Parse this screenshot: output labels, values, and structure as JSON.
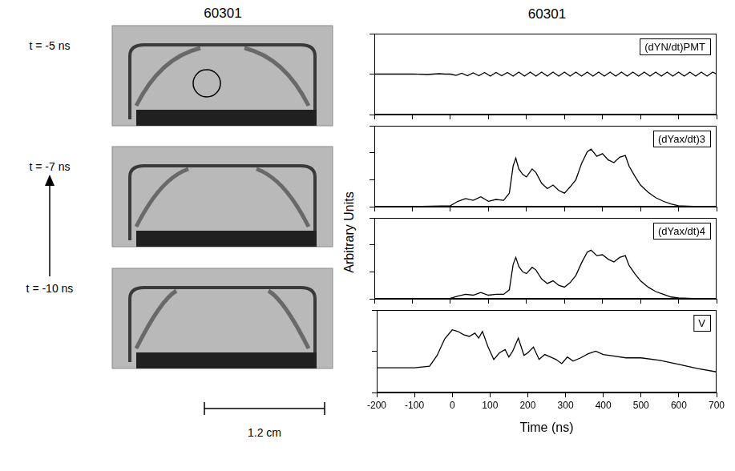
{
  "figure": {
    "title": "60301",
    "ylabel": "Arbitrary Units"
  },
  "images": {
    "title": "60301",
    "frames": [
      "t = -5 ns",
      "t = -7 ns",
      "t = -10 ns"
    ],
    "scale_bar": "1.2 cm"
  },
  "chart_data": [
    {
      "type": "line",
      "legend": "upper right",
      "grid": false,
      "tick_labels": false,
      "xlim": [
        -200,
        700
      ],
      "xticks": [
        -200,
        -100,
        0,
        100,
        200,
        300,
        400,
        500,
        600,
        700
      ],
      "ylim": [
        0,
        10
      ],
      "yticks": [
        0,
        5,
        10
      ],
      "x": [
        -200,
        -150,
        -100,
        -60,
        -30,
        -15,
        0,
        15,
        30,
        45,
        60,
        75,
        90,
        105,
        120,
        135,
        150,
        165,
        180,
        195,
        210,
        225,
        240,
        255,
        270,
        285,
        300,
        315,
        330,
        345,
        360,
        375,
        390,
        405,
        420,
        435,
        450,
        465,
        480,
        495,
        510,
        525,
        540,
        555,
        570,
        585,
        600,
        615,
        630,
        645,
        660,
        675,
        690,
        700
      ],
      "series": [
        {
          "name": "(dYN/dt)PMT",
          "color": "#000000",
          "values": [
            5.0,
            5.0,
            5.02,
            4.95,
            5.05,
            5.0,
            5.0,
            4.85,
            5.1,
            4.8,
            5.15,
            4.8,
            5.2,
            4.75,
            5.2,
            4.8,
            5.2,
            4.75,
            5.25,
            4.75,
            5.25,
            4.75,
            5.25,
            4.75,
            5.25,
            4.75,
            5.25,
            4.75,
            5.25,
            4.75,
            5.25,
            4.75,
            5.25,
            4.75,
            5.25,
            4.75,
            5.25,
            4.75,
            5.25,
            4.75,
            5.25,
            4.75,
            5.25,
            4.75,
            5.25,
            4.75,
            5.25,
            4.75,
            5.25,
            4.75,
            5.25,
            4.75,
            5.25,
            5.0
          ]
        }
      ]
    },
    {
      "type": "line",
      "legend": "upper right",
      "grid": false,
      "tick_labels": false,
      "xlim": [
        -200,
        700
      ],
      "xticks": [
        -200,
        -100,
        0,
        100,
        200,
        300,
        400,
        500,
        600,
        700
      ],
      "ylim": [
        0,
        9
      ],
      "yticks": [
        0,
        3,
        6,
        9
      ],
      "x": [
        -200,
        -100,
        0,
        20,
        40,
        60,
        80,
        100,
        120,
        140,
        155,
        165,
        172,
        180,
        190,
        200,
        215,
        225,
        240,
        255,
        270,
        285,
        300,
        315,
        330,
        345,
        360,
        370,
        385,
        400,
        415,
        430,
        445,
        460,
        470,
        485,
        500,
        520,
        540,
        560,
        580,
        600,
        650,
        700
      ],
      "series": [
        {
          "name": "(dYax/dt)3",
          "color": "#000000",
          "values": [
            0,
            0,
            0.1,
            0.6,
            0.9,
            0.7,
            1.1,
            0.6,
            0.8,
            0.7,
            1.5,
            4.5,
            5.4,
            4.2,
            3.6,
            3.3,
            4.2,
            3.8,
            2.6,
            2.0,
            2.4,
            1.8,
            1.5,
            2.2,
            3.0,
            4.8,
            6.1,
            6.4,
            5.6,
            5.9,
            5.2,
            4.9,
            5.5,
            5.7,
            4.5,
            3.4,
            2.4,
            1.6,
            1.0,
            0.6,
            0.3,
            0.1,
            0,
            0
          ]
        }
      ]
    },
    {
      "type": "line",
      "legend": "upper right",
      "grid": false,
      "tick_labels": false,
      "xlim": [
        -200,
        700
      ],
      "xticks": [
        -200,
        -100,
        0,
        100,
        200,
        300,
        400,
        500,
        600,
        700
      ],
      "ylim": [
        0,
        9
      ],
      "yticks": [
        0,
        3,
        6,
        9
      ],
      "x": [
        -200,
        -100,
        0,
        20,
        40,
        60,
        80,
        100,
        120,
        140,
        155,
        165,
        172,
        180,
        190,
        200,
        215,
        225,
        240,
        255,
        270,
        285,
        300,
        315,
        330,
        345,
        360,
        370,
        385,
        400,
        415,
        430,
        445,
        460,
        470,
        485,
        500,
        520,
        540,
        560,
        580,
        600,
        650,
        700
      ],
      "series": [
        {
          "name": "(dYax/dt)4",
          "color": "#000000",
          "values": [
            0,
            0,
            0.05,
            0.3,
            0.5,
            0.4,
            0.7,
            0.4,
            0.5,
            0.5,
            1.0,
            3.8,
            4.6,
            3.6,
            3.0,
            2.8,
            3.5,
            3.2,
            2.2,
            1.7,
            2.0,
            1.5,
            1.3,
            1.8,
            2.6,
            4.0,
            5.2,
            5.4,
            4.8,
            4.9,
            4.4,
            4.1,
            4.6,
            4.8,
            3.7,
            2.8,
            2.0,
            1.3,
            0.8,
            0.5,
            0.2,
            0.1,
            0,
            0
          ]
        }
      ]
    },
    {
      "type": "line",
      "legend": "upper right",
      "grid": false,
      "tick_labels": "x",
      "xlabel": "Time (ns)",
      "xlim": [
        -200,
        700
      ],
      "xticks": [
        -200,
        -100,
        0,
        100,
        200,
        300,
        400,
        500,
        600,
        700
      ],
      "ylim": [
        0,
        10
      ],
      "yticks": [
        0,
        5,
        10
      ],
      "x": [
        -200,
        -100,
        -60,
        -40,
        -20,
        0,
        15,
        30,
        45,
        60,
        70,
        80,
        95,
        110,
        125,
        140,
        150,
        160,
        175,
        190,
        200,
        215,
        230,
        245,
        260,
        275,
        290,
        305,
        320,
        340,
        360,
        380,
        400,
        430,
        460,
        500,
        550,
        600,
        650,
        700
      ],
      "series": [
        {
          "name": "V",
          "color": "#000000",
          "values": [
            3.0,
            3.0,
            3.2,
            4.5,
            6.5,
            7.6,
            7.4,
            7.0,
            6.8,
            7.2,
            6.6,
            7.4,
            5.5,
            4.0,
            4.8,
            5.2,
            4.3,
            5.0,
            6.6,
            4.5,
            4.8,
            5.5,
            4.0,
            4.6,
            4.3,
            4.0,
            3.5,
            4.3,
            3.8,
            4.2,
            4.7,
            5.0,
            4.6,
            4.4,
            4.2,
            4.2,
            3.9,
            3.4,
            2.9,
            2.5
          ]
        }
      ]
    }
  ]
}
